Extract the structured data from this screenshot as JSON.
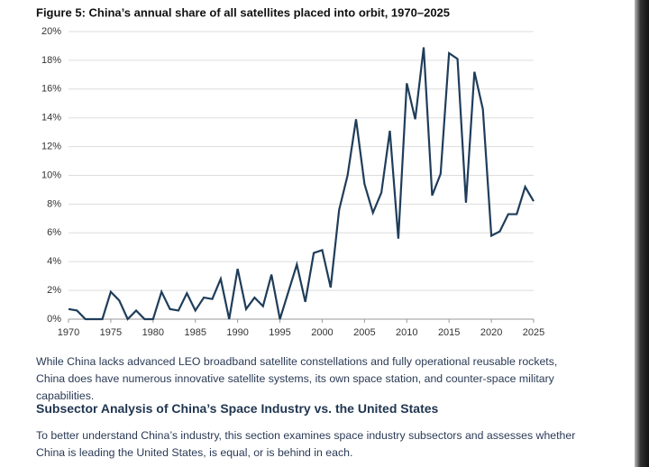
{
  "chart_data": {
    "type": "line",
    "title": "Figure 5: China’s annual share of all satellites placed into orbit, 1970–2025",
    "x": [
      1970,
      1971,
      1972,
      1973,
      1974,
      1975,
      1976,
      1977,
      1978,
      1979,
      1980,
      1981,
      1982,
      1983,
      1984,
      1985,
      1986,
      1987,
      1988,
      1989,
      1990,
      1991,
      1992,
      1993,
      1994,
      1995,
      1996,
      1997,
      1998,
      1999,
      2000,
      2001,
      2002,
      2003,
      2004,
      2005,
      2006,
      2007,
      2008,
      2009,
      2010,
      2011,
      2012,
      2013,
      2014,
      2015,
      2016,
      2017,
      2018,
      2019,
      2020,
      2021,
      2022,
      2023,
      2024,
      2025
    ],
    "values": [
      0.7,
      0.6,
      0,
      0,
      0,
      1.9,
      1.3,
      0,
      0.6,
      0,
      0,
      1.9,
      0.7,
      0.6,
      1.8,
      0.6,
      1.5,
      1.4,
      2.8,
      0,
      3.5,
      0.7,
      1.5,
      0.9,
      3.1,
      0,
      1.9,
      3.8,
      1.2,
      4.6,
      4.8,
      2.2,
      7.6,
      10.0,
      13.9,
      9.4,
      7.4,
      8.8,
      13.1,
      5.6,
      16.4,
      13.9,
      18.9,
      8.6,
      10.1,
      18.5,
      18.1,
      8.1,
      17.2,
      14.6,
      5.8,
      6.1,
      7.3,
      7.3,
      9.2,
      8.2
    ],
    "color": "#1f3d5a",
    "xlim": [
      1970,
      2025
    ],
    "xticks": [
      1970,
      1975,
      1980,
      1985,
      1990,
      1995,
      2000,
      2005,
      2010,
      2015,
      2020,
      2025
    ],
    "ylim": [
      0,
      20
    ],
    "yticks": [
      {
        "value": 0,
        "label": "0%"
      },
      {
        "value": 2,
        "label": "2%"
      },
      {
        "value": 4,
        "label": "4%"
      },
      {
        "value": 6,
        "label": "6%"
      },
      {
        "value": 8,
        "label": "8%"
      },
      {
        "value": 10,
        "label": "10%"
      },
      {
        "value": 12,
        "label": "12%"
      },
      {
        "value": 14,
        "label": "14%"
      },
      {
        "value": 16,
        "label": "16%"
      },
      {
        "value": 18,
        "label": "18%"
      },
      {
        "value": 20,
        "label": "20%"
      }
    ],
    "grid": true
  },
  "body": {
    "paragraph_1": "While China lacks advanced LEO broadband satellite constellations and fully operational reusable rockets, China does have numerous innovative satellite systems, its own space station, and counter-space military capabilities.",
    "heading": "Subsector Analysis of China’s Space Industry vs. the United States",
    "paragraph_2": "To better understand China’s industry, this section examines space industry subsectors and assesses whether China is leading the United States, is equal, or is behind in each."
  }
}
